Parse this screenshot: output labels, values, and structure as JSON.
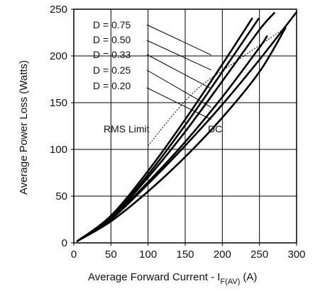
{
  "chart_data": {
    "type": "line",
    "title": "",
    "xlabel": "Average Forward Current - I",
    "xlabel_sub": "F(AV)",
    "xlabel_unit": "(A)",
    "ylabel": "Average Power Loss (Watts)",
    "xlim": [
      0,
      300
    ],
    "ylim": [
      0,
      250
    ],
    "x_ticks": [
      0,
      50,
      100,
      150,
      200,
      250,
      300
    ],
    "y_ticks": [
      0,
      50,
      100,
      150,
      200,
      250
    ],
    "grid": true,
    "series": [
      {
        "name": "D = 0.75",
        "x": [
          5,
          50,
          100,
          150,
          200,
          240
        ],
        "y": [
          2,
          29,
          77,
          132,
          191,
          240
        ]
      },
      {
        "name": "D = 0.50",
        "x": [
          5,
          50,
          100,
          150,
          200,
          249
        ],
        "y": [
          2,
          28,
          73,
          126,
          183,
          240
        ]
      },
      {
        "name": "D = 0.33",
        "x": [
          5,
          50,
          100,
          150,
          200,
          250,
          270
        ],
        "y": [
          2,
          27,
          70,
          119,
          173,
          228,
          246
        ]
      },
      {
        "name": "D = 0.25",
        "x": [
          5,
          50,
          100,
          150,
          200,
          250,
          260
        ],
        "y": [
          2,
          26,
          65,
          108,
          156,
          209,
          221
        ]
      },
      {
        "name": "D = 0.20",
        "x": [
          5,
          50,
          100,
          150,
          200,
          250,
          300
        ],
        "y": [
          2,
          25,
          63,
          104,
          148,
          196,
          247
        ]
      },
      {
        "name": "DC",
        "x": [
          5,
          50,
          100,
          150,
          200,
          250,
          285
        ],
        "y": [
          2,
          23,
          55,
          92,
          134,
          183,
          230
        ]
      }
    ],
    "rms_limit": {
      "name": "RMS Limit",
      "x": [
        100,
        160,
        220,
        285
      ],
      "y": [
        104,
        160,
        195,
        230
      ]
    },
    "annotations": [
      {
        "text": "D = 0.75",
        "target_series": "D = 0.75"
      },
      {
        "text": "D = 0.50",
        "target_series": "D = 0.50"
      },
      {
        "text": "D = 0.33",
        "target_series": "D = 0.33"
      },
      {
        "text": "D = 0.25",
        "target_series": "D = 0.25"
      },
      {
        "text": "D = 0.20",
        "target_series": "D = 0.20"
      },
      {
        "text": "RMS Limit"
      },
      {
        "text": "DC"
      }
    ]
  }
}
